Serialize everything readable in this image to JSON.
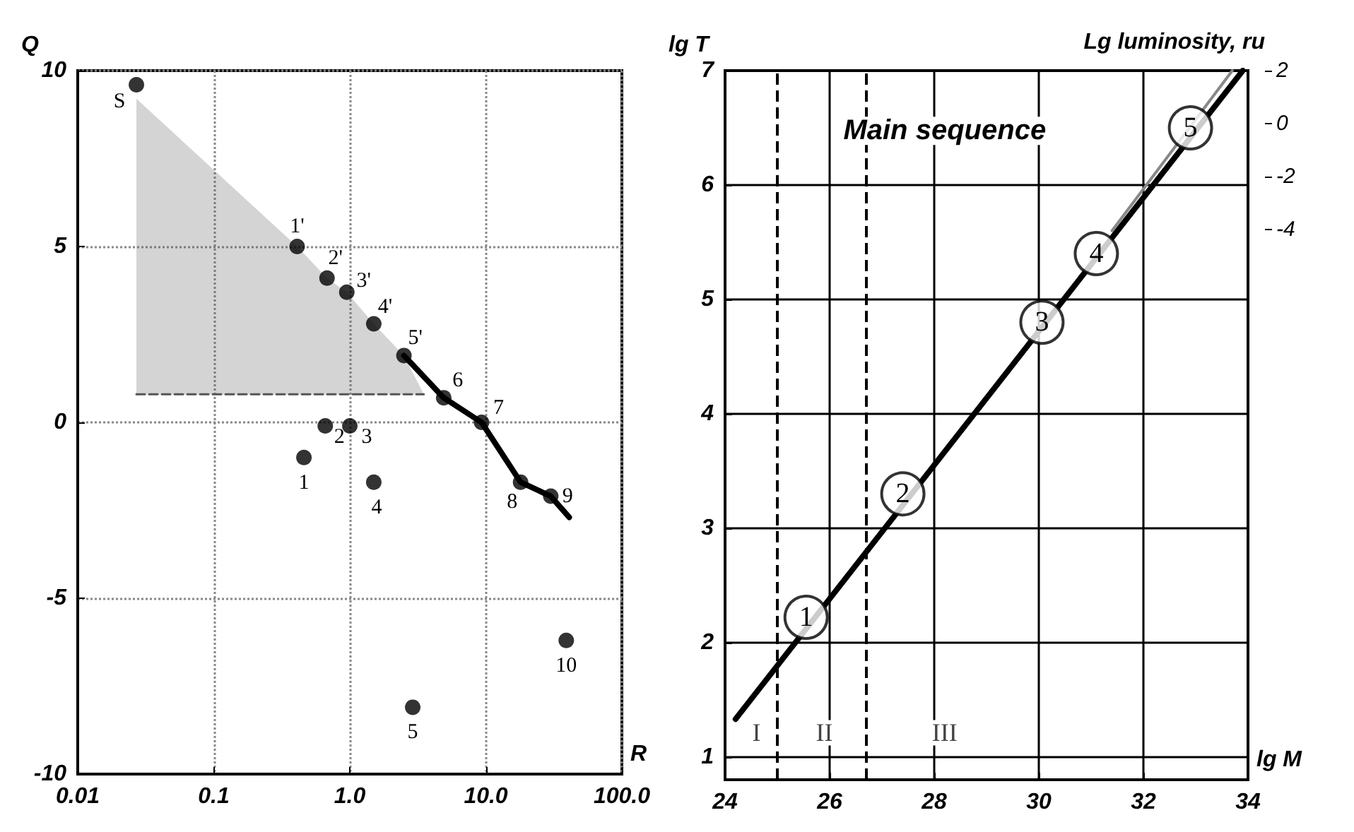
{
  "chart_data": [
    {
      "type": "scatter",
      "xlabel": "R",
      "ylabel": "Q",
      "log": "x",
      "xlim": [
        0.01,
        100
      ],
      "xticks": [
        {
          "value": 0.01,
          "label": "0.01"
        },
        {
          "value": 0.1,
          "label": "0.1"
        },
        {
          "value": 1,
          "label": "1.0"
        },
        {
          "value": 10,
          "label": "10.0"
        },
        {
          "value": 100,
          "label": "100.0"
        }
      ],
      "ylim": [
        -10,
        10
      ],
      "yticks": [
        -10,
        -5,
        0,
        5,
        10
      ],
      "grid": true,
      "annotations": [
        {
          "text": "S",
          "x": 0.027,
          "y": 9.6
        },
        {
          "text": "1'",
          "x": 0.41,
          "y": 5.0
        },
        {
          "text": "2'",
          "x": 0.68,
          "y": 4.1
        },
        {
          "text": "3'",
          "x": 0.95,
          "y": 3.7
        },
        {
          "text": "4'",
          "x": 1.5,
          "y": 2.8
        },
        {
          "text": "5'",
          "x": 2.5,
          "y": 1.9
        },
        {
          "text": "6",
          "x": 4.9,
          "y": 0.7
        },
        {
          "text": "7",
          "x": 9.3,
          "y": 0.0
        },
        {
          "text": "8",
          "x": 18,
          "y": -1.7
        },
        {
          "text": "9",
          "x": 30,
          "y": -2.1
        },
        {
          "text": "10",
          "x": 39,
          "y": -6.2
        },
        {
          "text": "1",
          "x": 0.46,
          "y": -1.0
        },
        {
          "text": "2",
          "x": 0.66,
          "y": -0.1
        },
        {
          "text": "3",
          "x": 1.0,
          "y": -0.1
        },
        {
          "text": "4",
          "x": 1.5,
          "y": -1.7
        },
        {
          "text": "5",
          "x": 2.9,
          "y": -8.1
        }
      ],
      "series": [
        {
          "type": "area",
          "color": "#555555",
          "x": [
            0.027,
            0.41,
            0.68,
            0.95,
            1.5,
            2.5,
            3.5
          ],
          "values": [
            9.2,
            5.0,
            4.1,
            3.7,
            2.8,
            1.9,
            0.8
          ]
        },
        {
          "type": "line",
          "color": "#555555",
          "marker": "none",
          "line_style": "dashed",
          "x": [
            0.027,
            3.5
          ],
          "values": [
            0.8,
            0.8
          ]
        },
        {
          "type": "line",
          "color": "#000000",
          "marker": "none",
          "x": [
            2.5,
            4.9,
            9.3,
            18,
            30,
            41
          ],
          "values": [
            1.9,
            0.7,
            0.0,
            -1.7,
            -2.1,
            -2.7
          ]
        },
        {
          "type": "scatter",
          "color": "#000000",
          "marker": "circle",
          "x": [
            0.027,
            0.41,
            0.68,
            0.95,
            1.5,
            2.5,
            4.9,
            9.3,
            18,
            30,
            39,
            0.46,
            0.66,
            1.0,
            1.5,
            2.9
          ],
          "values": [
            9.6,
            5.0,
            4.1,
            3.7,
            2.8,
            1.9,
            0.7,
            0.0,
            -1.7,
            -2.1,
            -6.2,
            -1.0,
            -0.1,
            -0.1,
            -1.7,
            -8.1
          ]
        }
      ]
    },
    {
      "type": "line",
      "xlabel": "lg M",
      "ylabel": "lg T",
      "y2label": "Lg luminosity, ru",
      "xlim": [
        24,
        34
      ],
      "xticks": [
        24,
        26,
        28,
        30,
        32,
        34
      ],
      "ylim": [
        0.8,
        7
      ],
      "yticks": [
        1,
        2,
        3,
        4,
        5,
        6,
        7
      ],
      "y2lim": [
        -24.8,
        2
      ],
      "y2ticks": [
        -4,
        -2,
        0,
        2
      ],
      "grid": true,
      "ref_lines": [
        {
          "axis": "x",
          "value": 25,
          "line_style": "dashed"
        },
        {
          "axis": "x",
          "value": 26.7,
          "line_style": "dashed"
        }
      ],
      "annotations": [
        {
          "text": "1",
          "x": 25.55,
          "y": 2.22
        },
        {
          "text": "2",
          "x": 27.4,
          "y": 3.3
        },
        {
          "text": "3",
          "x": 30.06,
          "y": 4.8
        },
        {
          "text": "4",
          "x": 31.1,
          "y": 5.4
        },
        {
          "text": "5",
          "x": 32.9,
          "y": 6.5
        },
        "Main sequence",
        "I",
        "II",
        "III"
      ],
      "series": [
        {
          "type": "line",
          "color": "#000000",
          "marker": "none",
          "x": [
            24.2,
            33.9
          ],
          "values": [
            1.33,
            7
          ]
        },
        {
          "type": "line",
          "color": "#888888",
          "marker": "none",
          "x": [
            31.4,
            33.7
          ],
          "values": [
            5.6,
            7
          ]
        },
        {
          "type": "scatter",
          "color": "#000000",
          "marker": "circle",
          "x": [
            25.55,
            27.4,
            30.06,
            31.1,
            32.9
          ],
          "values": [
            2.22,
            3.3,
            4.8,
            5.4,
            6.5
          ]
        }
      ]
    }
  ]
}
